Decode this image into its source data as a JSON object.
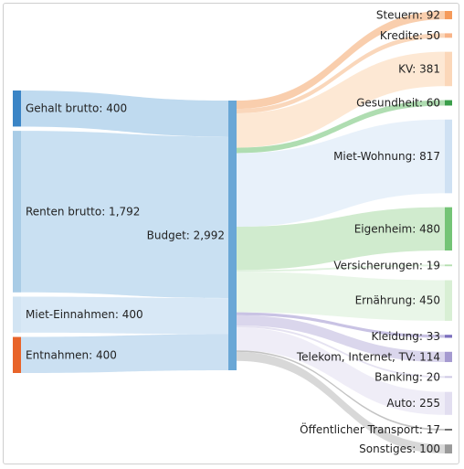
{
  "chart_data": {
    "type": "sankey",
    "title": "",
    "center": {
      "name": "Budget",
      "value": 2992,
      "color": "#6aa7d6"
    },
    "sources": [
      {
        "name": "Gehalt brutto",
        "value": 400,
        "label": "Gehalt brutto: 400",
        "node_color": "#3b85c6",
        "link_color": "#bcd8ee"
      },
      {
        "name": "Renten brutto",
        "value": 1792,
        "label": "Renten brutto: 1,792",
        "node_color": "#a9cce6",
        "link_color": "#c6def1"
      },
      {
        "name": "Miet-Einnahmen",
        "value": 400,
        "label": "Miet-Einnahmen: 400",
        "node_color": "#d2e4f3",
        "link_color": "#d6e7f5"
      },
      {
        "name": "Entnahmen",
        "value": 400,
        "label": "Entnahmen: 400",
        "node_color": "#e8642a",
        "link_color": "#c8def1"
      }
    ],
    "targets": [
      {
        "name": "Steuern",
        "value": 92,
        "label": "Steuern: 92",
        "node_color": "#f59a5a",
        "link_color": "#f8c9a4"
      },
      {
        "name": "Kredite",
        "value": 50,
        "label": "Kredite: 50",
        "node_color": "#f8b488",
        "link_color": "#fad3b4"
      },
      {
        "name": "KV",
        "value": 381,
        "label": "KV: 381",
        "node_color": "#fbd7b9",
        "link_color": "#fde5cf"
      },
      {
        "name": "Gesundheit",
        "value": 60,
        "label": "Gesundheit: 60",
        "node_color": "#3a9e4a",
        "link_color": "#a6d9a8"
      },
      {
        "name": "Miet-Wohnung",
        "value": 817,
        "label": "Miet-Wohnung: 817",
        "node_color": "#cfe1f3",
        "link_color": "#e6f0fa"
      },
      {
        "name": "Eigenheim",
        "value": 480,
        "label": "Eigenheim: 480",
        "node_color": "#74c476",
        "link_color": "#cbe9c9"
      },
      {
        "name": "Versicherungen",
        "value": 19,
        "label": "Versicherungen: 19",
        "node_color": "#b5dfb0",
        "link_color": "#dcf0da"
      },
      {
        "name": "Ernährung",
        "value": 450,
        "label": "Ernährung: 450",
        "node_color": "#d8efd4",
        "link_color": "#e7f5e5"
      },
      {
        "name": "Kleidung",
        "value": 33,
        "label": "Kleidung: 33",
        "node_color": "#7b6fbd",
        "link_color": "#c3bde1"
      },
      {
        "name": "Telekom, Internet, TV",
        "value": 114,
        "label": "Telekom, Internet, TV: 114",
        "node_color": "#a59ad0",
        "link_color": "#d6d1ea"
      },
      {
        "name": "Banking",
        "value": 20,
        "label": "Banking: 20",
        "node_color": "#cdc8e4",
        "link_color": "#e2dff0"
      },
      {
        "name": "Auto",
        "value": 255,
        "label": "Auto: 255",
        "node_color": "#e2def0",
        "link_color": "#edebf6"
      },
      {
        "name": "Öffentlicher Transport",
        "value": 17,
        "label": "Öffentlicher Transport: 17",
        "node_color": "#555555",
        "link_color": "#bdbdbd"
      },
      {
        "name": "Sonstiges",
        "value": 100,
        "label": "Sonstiges: 100",
        "node_color": "#9a9a9a",
        "link_color": "#d4d4d4"
      }
    ]
  }
}
